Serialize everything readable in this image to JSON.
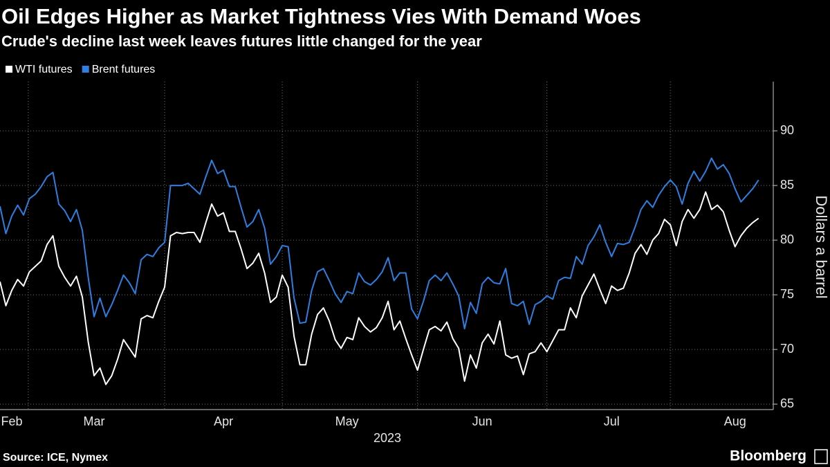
{
  "chart_data": {
    "type": "line",
    "title": "Oil Edges Higher as Market Tightness Vies With Demand Woes",
    "subtitle": "Crude's decline last week leaves futures little changed for the year",
    "y_label": "Dollars a barrel",
    "x_label": "2023",
    "source": "Source: ICE, Nymex",
    "brand": "Bloomberg",
    "categories": [
      null,
      null,
      "Feb",
      null,
      null,
      null,
      null,
      null,
      null,
      null,
      null,
      null,
      null,
      null,
      null,
      null,
      "Mar",
      null,
      null,
      null,
      null,
      null,
      null,
      null,
      null,
      null,
      null,
      null,
      null,
      null,
      null,
      null,
      null,
      null,
      null,
      null,
      null,
      null,
      "Apr",
      null,
      null,
      null,
      null,
      null,
      null,
      null,
      null,
      null,
      null,
      null,
      null,
      null,
      null,
      null,
      null,
      null,
      null,
      null,
      null,
      "May",
      null,
      null,
      null,
      null,
      null,
      null,
      null,
      null,
      null,
      null,
      null,
      null,
      null,
      null,
      null,
      null,
      null,
      null,
      null,
      null,
      null,
      null,
      "Jun",
      null,
      null,
      null,
      null,
      null,
      null,
      null,
      null,
      null,
      null,
      null,
      null,
      null,
      null,
      null,
      null,
      null,
      null,
      null,
      null,
      null,
      "Jul",
      null,
      null,
      null,
      null,
      null,
      null,
      null,
      null,
      null,
      null,
      null,
      null,
      null,
      null,
      null,
      null,
      null,
      null,
      null,
      null,
      "Aug",
      null,
      null,
      null,
      null
    ],
    "xticks": [
      4.8,
      28,
      48,
      71,
      93,
      114
    ],
    "ylim": [
      64.5,
      94.5
    ],
    "yticks": [
      65,
      70,
      75,
      80,
      85,
      90
    ],
    "grid": true,
    "legend": "top-left",
    "series": [
      {
        "name": "WTI futures",
        "color": "#ffffff",
        "values": [
          76.2,
          74.0,
          75.4,
          76.4,
          75.8,
          77.1,
          77.6,
          78.1,
          79.6,
          80.4,
          77.6,
          76.6,
          75.8,
          76.7,
          74.8,
          70.7,
          67.6,
          68.3,
          66.8,
          67.6,
          69.1,
          70.9,
          70.1,
          69.3,
          72.8,
          73.1,
          72.9,
          74.4,
          75.7,
          80.4,
          80.7,
          80.6,
          80.7,
          80.7,
          79.8,
          81.6,
          83.3,
          82.2,
          82.5,
          80.8,
          80.8,
          79.2,
          77.4,
          77.9,
          78.8,
          77.0,
          74.3,
          74.8,
          76.8,
          75.7,
          71.2,
          68.6,
          68.6,
          71.4,
          73.2,
          73.8,
          72.6,
          70.9,
          70.1,
          71.1,
          70.9,
          72.9,
          72.1,
          71.6,
          72.0,
          72.9,
          74.4,
          71.8,
          72.6,
          71.0,
          69.5,
          68.1,
          70.0,
          71.8,
          72.1,
          71.7,
          72.5,
          71.0,
          70.1,
          67.1,
          69.5,
          68.3,
          70.6,
          71.4,
          70.5,
          72.6,
          69.5,
          69.2,
          69.4,
          67.7,
          69.6,
          69.8,
          70.6,
          69.8,
          70.8,
          71.8,
          71.8,
          73.8,
          72.9,
          74.9,
          75.9,
          76.9,
          75.5,
          74.2,
          75.8,
          75.4,
          75.6,
          77.0,
          78.8,
          79.6,
          78.7,
          80.0,
          80.6,
          81.9,
          81.4,
          79.5,
          81.7,
          82.8,
          82.0,
          82.8,
          84.4,
          82.8,
          83.2,
          82.6,
          80.9,
          79.4,
          80.4,
          81.1,
          81.6,
          82.0
        ]
      },
      {
        "name": "Brent futures",
        "color": "#2f7fe0",
        "values": [
          83.1,
          80.6,
          82.2,
          83.2,
          82.3,
          83.8,
          84.2,
          84.9,
          85.8,
          86.2,
          83.3,
          82.7,
          81.7,
          82.8,
          80.9,
          76.6,
          73.0,
          74.7,
          73.0,
          74.1,
          75.4,
          76.8,
          76.1,
          75.1,
          78.2,
          78.7,
          78.5,
          79.3,
          79.8,
          85.0,
          85.0,
          85.0,
          85.2,
          84.7,
          84.2,
          85.8,
          87.3,
          86.1,
          86.4,
          84.9,
          84.9,
          83.0,
          81.2,
          81.7,
          82.8,
          81.1,
          77.8,
          78.5,
          79.5,
          79.4,
          74.7,
          72.4,
          72.5,
          75.4,
          77.1,
          77.4,
          76.3,
          75.1,
          74.3,
          75.3,
          75.1,
          77.0,
          76.2,
          75.9,
          76.4,
          77.1,
          78.4,
          76.3,
          77.0,
          77.0,
          73.7,
          72.8,
          74.4,
          76.3,
          76.8,
          76.3,
          77.0,
          76.0,
          74.9,
          71.9,
          74.3,
          73.3,
          76.0,
          76.6,
          76.1,
          76.0,
          77.4,
          74.2,
          74.0,
          74.4,
          72.3,
          74.1,
          74.4,
          74.9,
          74.6,
          76.3,
          76.6,
          76.5,
          78.5,
          77.8,
          79.5,
          80.3,
          81.4,
          79.8,
          78.5,
          79.7,
          79.6,
          79.8,
          81.2,
          82.8,
          83.6,
          83.0,
          84.1,
          84.9,
          85.5,
          84.9,
          83.3,
          85.2,
          86.3,
          85.4,
          86.3,
          87.5,
          86.5,
          86.9,
          86.1,
          84.7,
          83.5,
          84.1,
          84.7,
          85.5
        ]
      }
    ]
  }
}
